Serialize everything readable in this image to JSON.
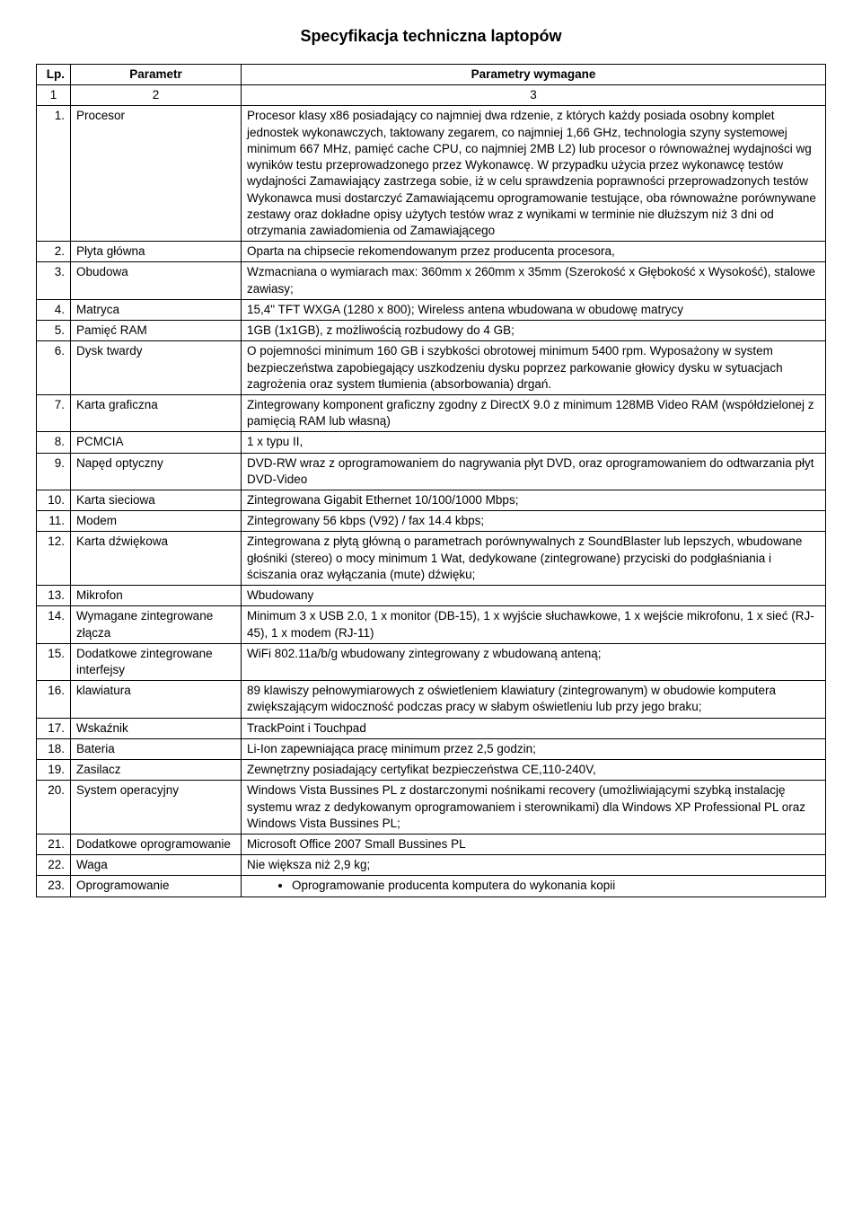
{
  "title": "Specyfikacja techniczna laptopów",
  "headers": {
    "lp": "Lp.",
    "param": "Parametr",
    "req": "Parametry wymagane"
  },
  "nums": {
    "c1": "1",
    "c2": "2",
    "c3": "3"
  },
  "rows": [
    {
      "n": "1.",
      "p": "Procesor",
      "v": "Procesor klasy x86 posiadający co najmniej dwa rdzenie, z których każdy posiada osobny komplet jednostek wykonawczych, taktowany zegarem, co najmniej 1,66 GHz, technologia szyny systemowej minimum 667 MHz, pamięć cache CPU, co najmniej 2MB L2) lub procesor o równoważnej wydajności wg wyników testu przeprowadzonego przez Wykonawcę. W przypadku użycia przez wykonawcę testów wydajności Zamawiający zastrzega sobie, iż w celu sprawdzenia poprawności przeprowadzonych testów Wykonawca musi dostarczyć Zamawiającemu oprogramowanie testujące, oba równoważne porównywane zestawy oraz dokładne opisy użytych testów wraz z wynikami w terminie nie dłuższym niż 3 dni od otrzymania zawiadomienia od Zamawiającego"
    },
    {
      "n": "2.",
      "p": "Płyta główna",
      "v": "Oparta na chipsecie rekomendowanym przez producenta procesora,"
    },
    {
      "n": "3.",
      "p": "Obudowa",
      "v": "Wzmacniana o wymiarach max: 360mm x 260mm x 35mm (Szerokość x Głębokość x Wysokość), stalowe zawiasy;"
    },
    {
      "n": "4.",
      "p": "Matryca",
      "v": "15,4\" TFT WXGA (1280 x 800); Wireless antena wbudowana w obudowę matrycy"
    },
    {
      "n": "5.",
      "p": "Pamięć RAM",
      "v": "1GB (1x1GB), z możliwością rozbudowy do 4 GB;"
    },
    {
      "n": "6.",
      "p": "Dysk twardy",
      "v": "O pojemności minimum 160 GB i szybkości obrotowej minimum 5400 rpm. Wyposażony w system bezpieczeństwa zapobiegający uszkodzeniu dysku poprzez parkowanie głowicy dysku w sytuacjach zagrożenia oraz system tłumienia (absorbowania) drgań."
    },
    {
      "n": "7.",
      "p": "Karta graficzna",
      "v": "Zintegrowany komponent graficzny zgodny z DirectX 9.0 z minimum 128MB Video RAM (współdzielonej z pamięcią RAM lub własną)"
    },
    {
      "n": "8.",
      "p": "PCMCIA",
      "v": " 1 x typu II,"
    },
    {
      "n": "9.",
      "p": "Napęd optyczny",
      "v": "DVD-RW wraz z oprogramowaniem do nagrywania płyt DVD, oraz oprogramowaniem do odtwarzania płyt DVD-Video"
    },
    {
      "n": "10.",
      "p": "Karta sieciowa",
      "v": "Zintegrowana Gigabit Ethernet 10/100/1000 Mbps;"
    },
    {
      "n": "11.",
      "p": "Modem",
      "v": "Zintegrowany 56 kbps (V92) / fax 14.4 kbps;"
    },
    {
      "n": "12.",
      "p": "Karta dźwiękowa",
      "v": "Zintegrowana z płytą główną o parametrach porównywalnych z SoundBlaster lub lepszych, wbudowane głośniki (stereo) o mocy minimum 1 Wat, dedykowane (zintegrowane) przyciski do podgłaśniania i ściszania oraz wyłączania (mute) dźwięku;"
    },
    {
      "n": "13.",
      "p": "Mikrofon",
      "v": "Wbudowany"
    },
    {
      "n": "14.",
      "p": "Wymagane zintegrowane złącza",
      "v": "Minimum 3 x USB 2.0, 1 x monitor (DB-15), 1 x wyjście słuchawkowe, 1 x wejście mikrofonu, 1 x sieć (RJ-45), 1 x modem (RJ-11)"
    },
    {
      "n": "15.",
      "p": "Dodatkowe zintegrowane interfejsy",
      "v": "WiFi 802.11a/b/g wbudowany zintegrowany z wbudowaną anteną;"
    },
    {
      "n": "16.",
      "p": "klawiatura",
      "v": "89 klawiszy pełnowymiarowych z oświetleniem klawiatury (zintegrowanym) w obudowie komputera zwiększającym widoczność podczas pracy w słabym oświetleniu lub przy jego braku;"
    },
    {
      "n": "17.",
      "p": "Wskaźnik",
      "v": "TrackPoint i Touchpad"
    },
    {
      "n": "18.",
      "p": "Bateria",
      "v": " Li-Ion zapewniająca pracę minimum przez 2,5 godzin;"
    },
    {
      "n": "19.",
      "p": "Zasilacz",
      "v": "Zewnętrzny posiadający certyfikat bezpieczeństwa CE,110-240V,"
    },
    {
      "n": "20.",
      "p": "System operacyjny",
      "v": "Windows Vista Bussines PL z dostarczonymi nośnikami recovery (umożliwiającymi szybką instalację systemu wraz z dedykowanym oprogramowaniem i sterownikami) dla Windows XP Professional PL oraz Windows Vista Bussines PL;"
    },
    {
      "n": "21.",
      "p": "Dodatkowe oprogramowanie",
      "v": "Microsoft Office 2007 Small Bussines PL"
    },
    {
      "n": "22.",
      "p": "Waga",
      "v": "Nie większa niż 2,9 kg;"
    }
  ],
  "row23": {
    "n": "23.",
    "p": "Oprogramowanie",
    "bullet": "Oprogramowanie producenta komputera do wykonania kopii"
  }
}
